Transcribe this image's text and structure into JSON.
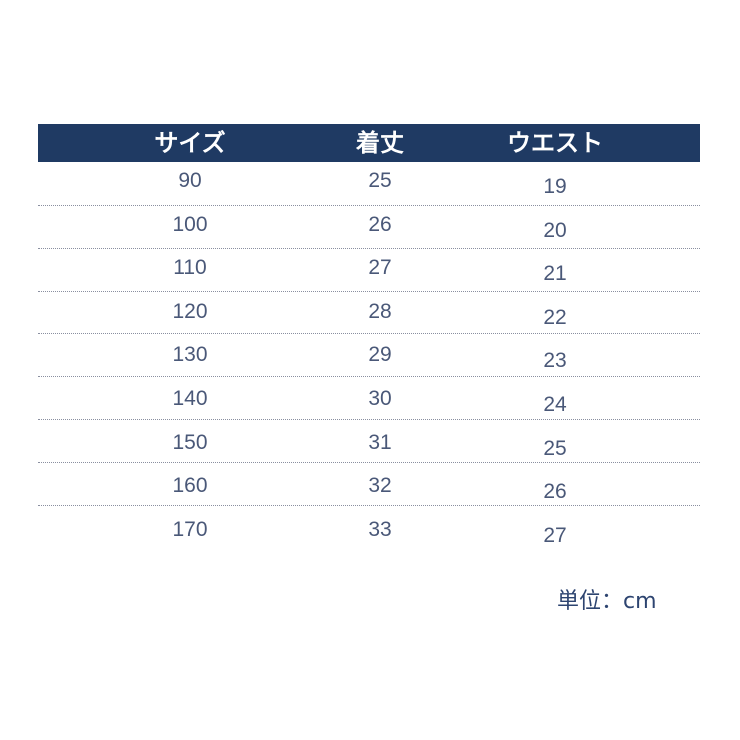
{
  "header": [
    "サイズ",
    "着丈",
    "ウエスト"
  ],
  "rows": [
    [
      "90",
      "25",
      "19"
    ],
    [
      "100",
      "26",
      "20"
    ],
    [
      "110",
      "27",
      "21"
    ],
    [
      "120",
      "28",
      "22"
    ],
    [
      "130",
      "29",
      "23"
    ],
    [
      "140",
      "30",
      "24"
    ],
    [
      "150",
      "31",
      "25"
    ],
    [
      "160",
      "32",
      "26"
    ],
    [
      "170",
      "33",
      "27"
    ]
  ],
  "unit": "単位：cm",
  "colors": {
    "header_bg": "#1f3a63",
    "text": "#4a5878"
  }
}
